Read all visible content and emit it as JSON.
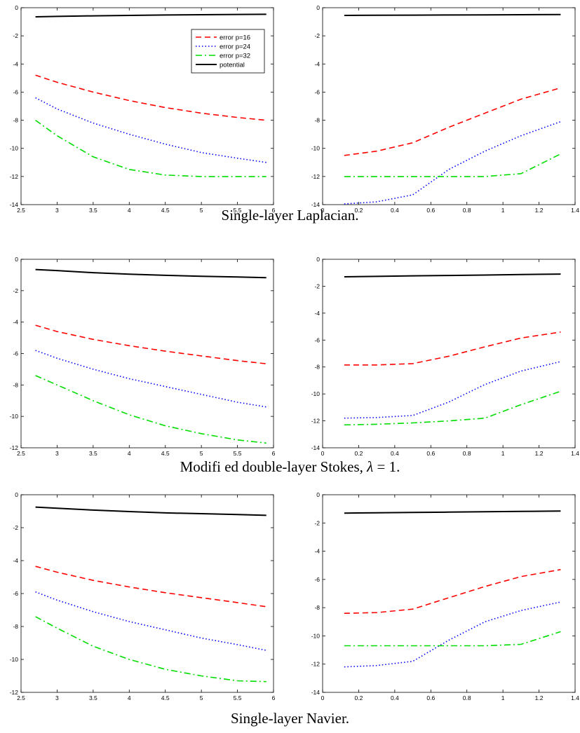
{
  "captions": [
    {
      "text": "Single-layer Laplacian."
    },
    {
      "prefix": "Modifi ed double-layer Stokes, ",
      "symbol": "λ",
      "suffix": " = 1."
    },
    {
      "text": "Single-layer Navier."
    }
  ],
  "legend": {
    "entries": [
      "error p=16",
      "error p=24",
      "error p=32",
      "potential"
    ]
  },
  "colors": {
    "p16": "#ff0000",
    "p24": "#0000ff",
    "p32": "#00dd00",
    "potential": "#000000"
  },
  "chart_data": [
    {
      "type": "line",
      "row": 0,
      "col": 0,
      "legend": "top-right",
      "grid": false,
      "title": "",
      "xlabel": "",
      "ylabel": "",
      "xlim": [
        2.5,
        6
      ],
      "ylim": [
        -14,
        0
      ],
      "xticks": [
        "2.5",
        "3",
        "3.5",
        "4",
        "4.5",
        "5",
        "5.5",
        "6"
      ],
      "yticks": [
        "-14",
        "-12",
        "-10",
        "-8",
        "-6",
        "-4",
        "-2",
        "0"
      ],
      "x": [
        2.7,
        3.0,
        3.5,
        4.0,
        4.5,
        5.0,
        5.5,
        5.9
      ],
      "series": [
        {
          "name": "error p=16",
          "values": [
            -4.8,
            -5.3,
            -6.0,
            -6.6,
            -7.1,
            -7.5,
            -7.8,
            -8.0
          ]
        },
        {
          "name": "error p=24",
          "values": [
            -6.4,
            -7.2,
            -8.2,
            -9.0,
            -9.7,
            -10.3,
            -10.7,
            -11.0
          ]
        },
        {
          "name": "error p=32",
          "values": [
            -8.0,
            -9.1,
            -10.6,
            -11.5,
            -11.9,
            -12.0,
            -12.0,
            -12.0
          ]
        },
        {
          "name": "potential",
          "values": [
            -0.65,
            -0.62,
            -0.58,
            -0.55,
            -0.52,
            -0.5,
            -0.48,
            -0.47
          ]
        }
      ]
    },
    {
      "type": "line",
      "row": 0,
      "col": 1,
      "grid": false,
      "title": "",
      "xlabel": "",
      "ylabel": "",
      "xlim": [
        0,
        1.4
      ],
      "ylim": [
        -14,
        0
      ],
      "xticks": [
        "0",
        "0.2",
        "0.4",
        "0.6",
        "0.8",
        "1",
        "1.2",
        "1.4"
      ],
      "yticks": [
        "-14",
        "-12",
        "-10",
        "-8",
        "-6",
        "-4",
        "-2",
        "0"
      ],
      "x": [
        0.12,
        0.3,
        0.5,
        0.7,
        0.9,
        1.1,
        1.32
      ],
      "series": [
        {
          "name": "error p=16",
          "values": [
            -10.5,
            -10.2,
            -9.6,
            -8.5,
            -7.5,
            -6.5,
            -5.7
          ]
        },
        {
          "name": "error p=24",
          "values": [
            -13.95,
            -13.8,
            -13.3,
            -11.5,
            -10.2,
            -9.1,
            -8.1
          ]
        },
        {
          "name": "error p=32",
          "values": [
            -12.0,
            -12.0,
            -12.0,
            -12.0,
            -12.0,
            -11.8,
            -10.4
          ]
        },
        {
          "name": "potential",
          "values": [
            -0.55,
            -0.54,
            -0.53,
            -0.52,
            -0.51,
            -0.5,
            -0.49
          ]
        }
      ]
    },
    {
      "type": "line",
      "row": 1,
      "col": 0,
      "grid": false,
      "title": "",
      "xlabel": "",
      "ylabel": "",
      "xlim": [
        2.5,
        6
      ],
      "ylim": [
        -12,
        0
      ],
      "xticks": [
        "2.5",
        "3",
        "3.5",
        "4",
        "4.5",
        "5",
        "5.5",
        "6"
      ],
      "yticks": [
        "-12",
        "-10",
        "-8",
        "-6",
        "-4",
        "-2",
        "0"
      ],
      "x": [
        2.7,
        3.0,
        3.5,
        4.0,
        4.5,
        5.0,
        5.5,
        5.9
      ],
      "series": [
        {
          "name": "error p=16",
          "values": [
            -4.2,
            -4.6,
            -5.1,
            -5.5,
            -5.85,
            -6.15,
            -6.45,
            -6.65
          ]
        },
        {
          "name": "error p=24",
          "values": [
            -5.8,
            -6.3,
            -7.0,
            -7.6,
            -8.1,
            -8.6,
            -9.1,
            -9.4
          ]
        },
        {
          "name": "error p=32",
          "values": [
            -7.4,
            -8.0,
            -9.0,
            -9.9,
            -10.6,
            -11.1,
            -11.5,
            -11.7
          ]
        },
        {
          "name": "potential",
          "values": [
            -0.65,
            -0.72,
            -0.85,
            -0.95,
            -1.02,
            -1.08,
            -1.13,
            -1.17
          ]
        }
      ]
    },
    {
      "type": "line",
      "row": 1,
      "col": 1,
      "grid": false,
      "title": "",
      "xlabel": "",
      "ylabel": "",
      "xlim": [
        0,
        1.4
      ],
      "ylim": [
        -14,
        0
      ],
      "xticks": [
        "0",
        "0.2",
        "0.4",
        "0.6",
        "0.8",
        "1",
        "1.2",
        "1.4"
      ],
      "yticks": [
        "-14",
        "-12",
        "-10",
        "-8",
        "-6",
        "-4",
        "-2",
        "0"
      ],
      "x": [
        0.12,
        0.3,
        0.5,
        0.7,
        0.9,
        1.1,
        1.32
      ],
      "series": [
        {
          "name": "error p=16",
          "values": [
            -7.85,
            -7.85,
            -7.75,
            -7.2,
            -6.5,
            -5.85,
            -5.4
          ]
        },
        {
          "name": "error p=24",
          "values": [
            -11.8,
            -11.75,
            -11.6,
            -10.6,
            -9.3,
            -8.3,
            -7.6
          ]
        },
        {
          "name": "error p=32",
          "values": [
            -12.3,
            -12.25,
            -12.15,
            -12.0,
            -11.8,
            -10.8,
            -9.8
          ]
        },
        {
          "name": "potential",
          "values": [
            -1.3,
            -1.27,
            -1.23,
            -1.2,
            -1.17,
            -1.13,
            -1.1
          ]
        }
      ]
    },
    {
      "type": "line",
      "row": 2,
      "col": 0,
      "grid": false,
      "title": "",
      "xlabel": "",
      "ylabel": "",
      "xlim": [
        2.5,
        6
      ],
      "ylim": [
        -12,
        0
      ],
      "xticks": [
        "2.5",
        "3",
        "3.5",
        "4",
        "4.5",
        "5",
        "5.5",
        "6"
      ],
      "yticks": [
        "-12",
        "-10",
        "-8",
        "-6",
        "-4",
        "-2",
        "0"
      ],
      "x": [
        2.7,
        3.0,
        3.5,
        4.0,
        4.5,
        5.0,
        5.5,
        5.9
      ],
      "series": [
        {
          "name": "error p=16",
          "values": [
            -4.35,
            -4.7,
            -5.2,
            -5.6,
            -5.95,
            -6.25,
            -6.55,
            -6.8
          ]
        },
        {
          "name": "error p=24",
          "values": [
            -5.9,
            -6.4,
            -7.1,
            -7.7,
            -8.2,
            -8.7,
            -9.1,
            -9.45
          ]
        },
        {
          "name": "error p=32",
          "values": [
            -7.4,
            -8.1,
            -9.2,
            -10.0,
            -10.6,
            -11.0,
            -11.3,
            -11.35
          ]
        },
        {
          "name": "potential",
          "values": [
            -0.75,
            -0.82,
            -0.93,
            -1.02,
            -1.1,
            -1.15,
            -1.2,
            -1.25
          ]
        }
      ]
    },
    {
      "type": "line",
      "row": 2,
      "col": 1,
      "grid": false,
      "title": "",
      "xlabel": "",
      "ylabel": "",
      "xlim": [
        0,
        1.4
      ],
      "ylim": [
        -14,
        0
      ],
      "xticks": [
        "0",
        "0.2",
        "0.4",
        "0.6",
        "0.8",
        "1",
        "1.2",
        "1.4"
      ],
      "yticks": [
        "-14",
        "-12",
        "-10",
        "-8",
        "-6",
        "-4",
        "-2",
        "0"
      ],
      "x": [
        0.12,
        0.3,
        0.5,
        0.7,
        0.9,
        1.1,
        1.32
      ],
      "series": [
        {
          "name": "error p=16",
          "values": [
            -8.4,
            -8.35,
            -8.1,
            -7.3,
            -6.5,
            -5.8,
            -5.3
          ]
        },
        {
          "name": "error p=24",
          "values": [
            -12.2,
            -12.1,
            -11.8,
            -10.3,
            -9.0,
            -8.2,
            -7.6
          ]
        },
        {
          "name": "error p=32",
          "values": [
            -10.7,
            -10.7,
            -10.7,
            -10.7,
            -10.7,
            -10.6,
            -9.7
          ]
        },
        {
          "name": "potential",
          "values": [
            -1.3,
            -1.28,
            -1.25,
            -1.23,
            -1.2,
            -1.18,
            -1.15
          ]
        }
      ]
    }
  ]
}
